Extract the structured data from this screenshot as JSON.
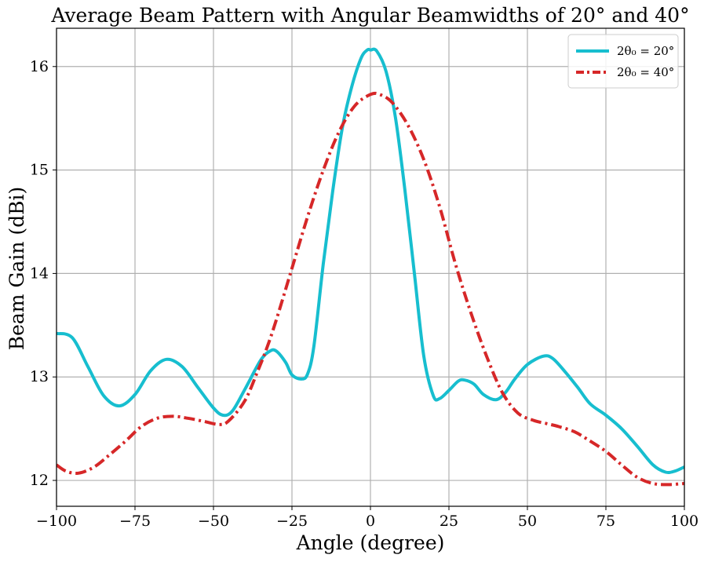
{
  "chart_data": {
    "type": "line",
    "title": "Average Beam Pattern with Angular Beamwidths of 20° and 40°",
    "xlabel": "Angle (degree)",
    "ylabel": "Beam Gain (dBi)",
    "xlim": [
      -100,
      100
    ],
    "ylim": [
      11.75,
      16.37
    ],
    "xticks": [
      -100,
      -75,
      -50,
      -25,
      0,
      25,
      50,
      75,
      100
    ],
    "xtick_labels": [
      "−100",
      "−75",
      "−50",
      "−25",
      "0",
      "25",
      "50",
      "75",
      "100"
    ],
    "yticks": [
      12,
      13,
      14,
      15,
      16
    ],
    "ytick_labels": [
      "12",
      "13",
      "14",
      "15",
      "16"
    ],
    "grid": true,
    "legend_position": "top-right",
    "series": [
      {
        "name": "2θ₀ = 20°",
        "color": "#17becf",
        "dash": "solid",
        "x": [
          -100,
          -95,
          -90,
          -85,
          -80,
          -75,
          -70,
          -65,
          -60,
          -55,
          -50,
          -47,
          -44,
          -40,
          -35,
          -32,
          -30,
          -27,
          -25,
          -22,
          -20,
          -18,
          -15,
          -12,
          -9,
          -6,
          -3,
          -1,
          0,
          2,
          5,
          8,
          11,
          14,
          17,
          20,
          22,
          25,
          28,
          30,
          33,
          36,
          40,
          43,
          46,
          50,
          55,
          58,
          62,
          66,
          70,
          75,
          80,
          85,
          90,
          94,
          97,
          100
        ],
        "y": [
          13.42,
          13.38,
          13.1,
          12.82,
          12.72,
          12.83,
          13.06,
          13.17,
          13.1,
          12.9,
          12.7,
          12.63,
          12.67,
          12.88,
          13.16,
          13.25,
          13.25,
          13.14,
          13.02,
          12.98,
          13.03,
          13.3,
          14.1,
          14.8,
          15.4,
          15.8,
          16.08,
          16.16,
          16.16,
          16.15,
          15.95,
          15.5,
          14.8,
          14.0,
          13.2,
          12.82,
          12.79,
          12.87,
          12.96,
          12.97,
          12.93,
          12.83,
          12.78,
          12.85,
          12.98,
          13.12,
          13.2,
          13.18,
          13.05,
          12.9,
          12.74,
          12.63,
          12.5,
          12.33,
          12.15,
          12.08,
          12.09,
          12.13
        ]
      },
      {
        "name": "2θ₀ = 40°",
        "color": "#d62728",
        "dash": "dashdot",
        "x": [
          -100,
          -97,
          -93,
          -88,
          -83,
          -78,
          -73,
          -68,
          -63,
          -58,
          -53,
          -48,
          -45,
          -40,
          -36,
          -33,
          -30,
          -25,
          -20,
          -15,
          -10,
          -5,
          0,
          3,
          7,
          12,
          17,
          22,
          27,
          32,
          37,
          42,
          47,
          52,
          56,
          60,
          65,
          70,
          75,
          80,
          85,
          90,
          95,
          100
        ],
        "y": [
          12.15,
          12.09,
          12.07,
          12.13,
          12.25,
          12.38,
          12.52,
          12.6,
          12.62,
          12.6,
          12.57,
          12.54,
          12.58,
          12.77,
          13.05,
          13.28,
          13.55,
          14.05,
          14.55,
          15.0,
          15.37,
          15.62,
          15.73,
          15.73,
          15.65,
          15.43,
          15.1,
          14.65,
          14.1,
          13.62,
          13.2,
          12.85,
          12.65,
          12.58,
          12.55,
          12.52,
          12.47,
          12.38,
          12.28,
          12.15,
          12.03,
          11.97,
          11.96,
          11.97
        ]
      }
    ]
  }
}
